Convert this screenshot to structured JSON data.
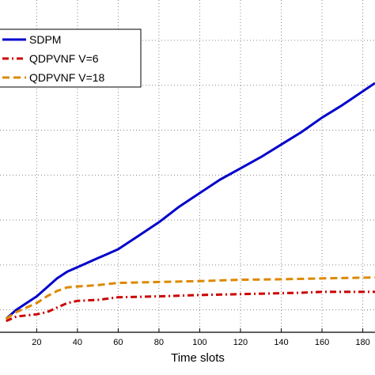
{
  "chart_data": {
    "type": "line",
    "title": "",
    "xlabel": "Time slots",
    "ylabel": "",
    "xlim": [
      2,
      186
    ],
    "ylim": [
      -0.5,
      6.3
    ],
    "xticks": [
      20,
      40,
      60,
      80,
      100,
      120,
      140,
      160,
      180
    ],
    "xtick_labels": [
      "20",
      "40",
      "60",
      "80",
      "100",
      "120",
      "140",
      "160",
      "180"
    ],
    "ygrid": [
      0,
      1,
      2,
      3,
      4,
      5,
      6
    ],
    "grid": true,
    "legend_position": "top-left",
    "series": [
      {
        "name": "SDPM",
        "color": "#0000cc",
        "style": "solid",
        "x": [
          5,
          10,
          15,
          20,
          25,
          30,
          35,
          40,
          45,
          50,
          55,
          60,
          70,
          80,
          90,
          100,
          110,
          120,
          130,
          140,
          150,
          160,
          170,
          186
        ],
        "y": [
          -0.2,
          0.0,
          0.15,
          0.3,
          0.5,
          0.7,
          0.85,
          0.95,
          1.05,
          1.15,
          1.25,
          1.35,
          1.65,
          1.95,
          2.3,
          2.6,
          2.9,
          3.15,
          3.4,
          3.68,
          3.96,
          4.28,
          4.56,
          5.05
        ]
      },
      {
        "name": "QDPVNF V=6",
        "color": "#cc0000",
        "style": "dashdot",
        "x": [
          5,
          10,
          20,
          25,
          30,
          35,
          40,
          50,
          60,
          80,
          100,
          120,
          140,
          150,
          160,
          186
        ],
        "y": [
          -0.25,
          -0.15,
          -0.1,
          -0.05,
          0.05,
          0.15,
          0.2,
          0.22,
          0.28,
          0.3,
          0.33,
          0.35,
          0.37,
          0.38,
          0.4,
          0.4
        ]
      },
      {
        "name": "QDPVNF V=18",
        "color": "#dd8800",
        "style": "dashed",
        "x": [
          5,
          10,
          15,
          20,
          25,
          30,
          35,
          40,
          50,
          60,
          80,
          100,
          120,
          140,
          160,
          186
        ],
        "y": [
          -0.2,
          -0.05,
          0.05,
          0.15,
          0.3,
          0.42,
          0.5,
          0.52,
          0.55,
          0.6,
          0.62,
          0.64,
          0.67,
          0.68,
          0.7,
          0.72
        ]
      }
    ]
  }
}
